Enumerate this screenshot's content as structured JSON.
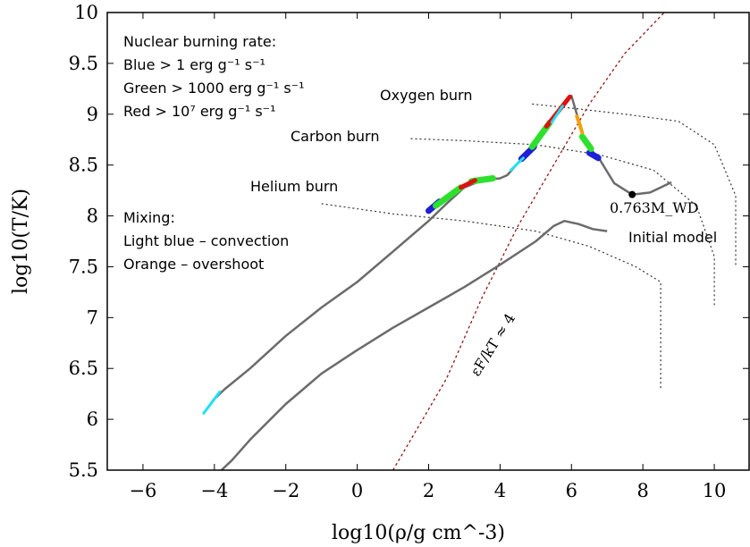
{
  "chart_data": {
    "type": "line",
    "xlabel": "log10(ρ/g cm^-3)",
    "ylabel": "log10(T/K)",
    "xlim": [
      -7,
      11
    ],
    "ylim": [
      5.5,
      10
    ],
    "x_ticks": [
      "−6",
      "−4",
      "−2",
      "0",
      "2",
      "4",
      "6",
      "8",
      "10"
    ],
    "x_tick_values": [
      -6,
      -4,
      -2,
      0,
      2,
      4,
      6,
      8,
      10
    ],
    "y_ticks": [
      "5.5",
      "6",
      "6.5",
      "7",
      "7.5",
      "8",
      "8.5",
      "9",
      "9.5",
      "10"
    ],
    "y_tick_values": [
      5.5,
      6,
      6.5,
      7,
      7.5,
      8,
      8.5,
      9,
      9.5,
      10
    ],
    "grid": false,
    "legend_text": {
      "line1": "Nuclear burning rate:",
      "line2": "Blue > 1 erg g⁻¹ s⁻¹",
      "line3": "Green > 1000 erg g⁻¹ s⁻¹",
      "line4": "Red > 10⁷ erg g⁻¹ s⁻¹",
      "line5": "Mixing:",
      "line6": "Light blue – convection",
      "line7": "Orange – overshoot"
    },
    "colors": {
      "track": "#6b6b6b",
      "blue": "#1f1fd6",
      "green": "#2ee02e",
      "red": "#e01010",
      "lightblue": "#22e0f0",
      "orange": "#f5a000",
      "degeneracy": "#8b1a1a",
      "ignition": "#333333"
    },
    "series": [
      {
        "name": "Initial model",
        "points": [
          [
            -3.8,
            5.5
          ],
          [
            -3.5,
            5.6
          ],
          [
            -3,
            5.8
          ],
          [
            -2,
            6.15
          ],
          [
            -1.5,
            6.3
          ],
          [
            -1,
            6.45
          ],
          [
            0,
            6.68
          ],
          [
            1,
            6.9
          ],
          [
            2,
            7.1
          ],
          [
            3,
            7.3
          ],
          [
            4,
            7.52
          ],
          [
            5,
            7.75
          ],
          [
            5.5,
            7.9
          ],
          [
            5.8,
            7.95
          ],
          [
            6.2,
            7.92
          ],
          [
            6.6,
            7.87
          ],
          [
            7.0,
            7.85
          ]
        ]
      },
      {
        "name": "",
        "points": [
          [
            -4.3,
            6.06
          ],
          [
            -4,
            6.2
          ],
          [
            -3.7,
            6.3
          ],
          [
            -3,
            6.5
          ],
          [
            -2,
            6.82
          ],
          [
            -1,
            7.1
          ],
          [
            0,
            7.35
          ],
          [
            1,
            7.65
          ],
          [
            2,
            7.95
          ],
          [
            2.5,
            8.12
          ],
          [
            3,
            8.28
          ],
          [
            3.5,
            8.35
          ],
          [
            4,
            8.37
          ],
          [
            4.2,
            8.4
          ],
          [
            4.5,
            8.52
          ],
          [
            5,
            8.72
          ],
          [
            5.5,
            8.95
          ],
          [
            6,
            9.18
          ],
          [
            6.15,
            9.0
          ],
          [
            6.25,
            8.9
          ],
          [
            6.35,
            8.75
          ],
          [
            6.5,
            8.67
          ],
          [
            6.8,
            8.55
          ],
          [
            7.2,
            8.32
          ],
          [
            7.7,
            8.21
          ],
          [
            8.2,
            8.23
          ],
          [
            8.8,
            8.33
          ]
        ]
      }
    ],
    "burning": {
      "blue": [
        [
          [
            2,
            8.05
          ],
          [
            2.3,
            8.14
          ]
        ],
        [
          [
            4.6,
            8.56
          ],
          [
            4.95,
            8.68
          ]
        ],
        [
          [
            6.5,
            8.62
          ],
          [
            6.75,
            8.57
          ]
        ]
      ],
      "green": [
        [
          [
            2.2,
            8.1
          ],
          [
            2.9,
            8.28
          ]
        ],
        [
          [
            3.2,
            8.34
          ],
          [
            3.8,
            8.37
          ]
        ],
        [
          [
            4.9,
            8.68
          ],
          [
            5.4,
            8.92
          ]
        ],
        [
          [
            6.3,
            8.78
          ],
          [
            6.55,
            8.66
          ]
        ]
      ],
      "red": [
        [
          [
            2.9,
            8.28
          ],
          [
            3.3,
            8.35
          ]
        ],
        [
          [
            5.3,
            8.88
          ],
          [
            5.95,
            9.17
          ]
        ]
      ],
      "lightblue": [
        [
          [
            -4.3,
            6.06
          ],
          [
            -3.85,
            6.27
          ]
        ],
        [
          [
            4.3,
            8.45
          ],
          [
            4.65,
            8.57
          ]
        ],
        [
          [
            5.45,
            8.92
          ],
          [
            5.75,
            9.08
          ]
        ]
      ],
      "orange": [
        [
          [
            6.15,
            8.98
          ],
          [
            6.3,
            8.82
          ]
        ]
      ]
    },
    "ignition_lines": [
      {
        "label": "Helium burn",
        "points": [
          [
            -1,
            8.12
          ],
          [
            1,
            8.02
          ],
          [
            3,
            7.95
          ],
          [
            5,
            7.85
          ],
          [
            6.5,
            7.7
          ],
          [
            7.8,
            7.5
          ],
          [
            8.5,
            7.35
          ],
          [
            8.5,
            6.3
          ]
        ]
      },
      {
        "label": "Carbon burn",
        "points": [
          [
            1.5,
            8.76
          ],
          [
            3,
            8.74
          ],
          [
            5,
            8.7
          ],
          [
            6.8,
            8.6
          ],
          [
            8.3,
            8.45
          ],
          [
            9.5,
            8.1
          ],
          [
            10,
            7.6
          ],
          [
            10,
            7.1
          ]
        ]
      },
      {
        "label": "Oxygen burn",
        "points": [
          [
            4.9,
            9.1
          ],
          [
            6,
            9.06
          ],
          [
            7.5,
            9.0
          ],
          [
            9,
            8.93
          ],
          [
            10,
            8.7
          ],
          [
            10.6,
            8.2
          ],
          [
            10.6,
            7.5
          ]
        ]
      }
    ],
    "degeneracy_line": {
      "label": "εF/kT ≈ 4",
      "points": [
        [
          1,
          5.5
        ],
        [
          2.5,
          6.4
        ],
        [
          3.5,
          7.2
        ],
        [
          4.5,
          7.9
        ],
        [
          5.5,
          8.5
        ],
        [
          6.5,
          9.1
        ],
        [
          7.5,
          9.6
        ],
        [
          8.6,
          10
        ]
      ]
    },
    "marker": {
      "label": "0.763M_WD",
      "x": 7.7,
      "y": 8.21
    }
  }
}
